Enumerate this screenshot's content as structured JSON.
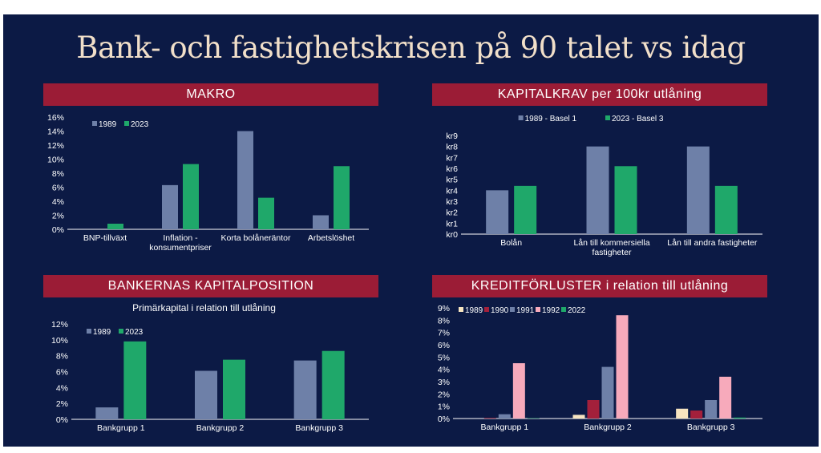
{
  "title": "Bank- och fastighetskrisen på 90 talet vs idag",
  "colors": {
    "background": "#0c1a45",
    "banner": "#9b1c36",
    "title": "#f1dfc9"
  },
  "panels": {
    "makro": {
      "banner": "MAKRO"
    },
    "kapitalkrav": {
      "banner": "KAPITALKRAV per 100kr utlåning"
    },
    "kapitalposition": {
      "banner": "BANKERNAS KAPITALPOSITION"
    },
    "kreditforluster": {
      "banner": "KREDITFÖRLUSTER i relation till utlåning"
    }
  },
  "chart_data": [
    {
      "id": "makro",
      "type": "bar",
      "title": "",
      "categories": [
        [
          "BNP-tillväxt"
        ],
        [
          "Inflation -",
          "konsumentpriser"
        ],
        [
          "Korta bolåneräntor"
        ],
        [
          "Arbetslöshet"
        ]
      ],
      "series": [
        {
          "name": "1989",
          "color": "#6e80a8",
          "values": [
            0,
            6.3,
            14.0,
            2.0
          ]
        },
        {
          "name": "2023",
          "color": "#1fa86a",
          "values": [
            0.8,
            9.3,
            4.5,
            9.0
          ]
        }
      ],
      "yticks": [
        "0%",
        "2%",
        "4%",
        "6%",
        "8%",
        "10%",
        "12%",
        "14%",
        "16%"
      ],
      "ylim": [
        0,
        16
      ],
      "legend": "top-left"
    },
    {
      "id": "kapitalkrav",
      "type": "bar",
      "title": "",
      "categories": [
        [
          "Bolån"
        ],
        [
          "Lån till kommersiella",
          "fastigheter"
        ],
        [
          "Lån till andra fastigheter"
        ]
      ],
      "series": [
        {
          "name": "1989 - Basel 1",
          "color": "#6e80a8",
          "values": [
            4.0,
            8.0,
            8.0
          ]
        },
        {
          "name": "2023 - Basel 3",
          "color": "#1fa86a",
          "values": [
            4.4,
            6.2,
            4.4
          ]
        }
      ],
      "yticks": [
        "kr0",
        "kr1",
        "kr2",
        "kr3",
        "kr4",
        "kr5",
        "kr6",
        "kr7",
        "kr8",
        "kr9"
      ],
      "ylim": [
        0,
        9
      ],
      "legend": "top"
    },
    {
      "id": "kapitalposition",
      "type": "bar",
      "title": "Primärkapital i relation till utlåning",
      "categories": [
        [
          "Bankgrupp 1"
        ],
        [
          "Bankgrupp 2"
        ],
        [
          "Bankgrupp 3"
        ]
      ],
      "series": [
        {
          "name": "1989",
          "color": "#6e80a8",
          "values": [
            1.5,
            6.1,
            7.4
          ]
        },
        {
          "name": "2023",
          "color": "#1fa86a",
          "values": [
            9.8,
            7.5,
            8.6
          ]
        }
      ],
      "yticks": [
        "0%",
        "2%",
        "4%",
        "6%",
        "8%",
        "10%",
        "12%"
      ],
      "ylim": [
        0,
        12
      ],
      "legend": "top-left"
    },
    {
      "id": "kreditforluster",
      "type": "bar",
      "title": "",
      "categories": [
        [
          "Bankgrupp 1"
        ],
        [
          "Bankgrupp 2"
        ],
        [
          "Bankgrupp 3"
        ]
      ],
      "series": [
        {
          "name": "1989",
          "color": "#f6e4c0",
          "values": [
            0.0,
            0.3,
            0.8
          ]
        },
        {
          "name": "1990",
          "color": "#a3203b",
          "values": [
            0.05,
            1.5,
            0.65
          ]
        },
        {
          "name": "1991",
          "color": "#6e80a8",
          "values": [
            0.35,
            4.2,
            1.5
          ]
        },
        {
          "name": "1992",
          "color": "#f7aabb",
          "values": [
            4.5,
            8.4,
            3.4
          ]
        },
        {
          "name": "2022",
          "color": "#1fa86a",
          "values": [
            0.03,
            0.0,
            0.08
          ]
        }
      ],
      "yticks": [
        "0%",
        "1%",
        "2%",
        "3%",
        "4%",
        "5%",
        "6%",
        "7%",
        "8%",
        "9%"
      ],
      "ylim": [
        0,
        9
      ],
      "legend": "top-left"
    }
  ]
}
